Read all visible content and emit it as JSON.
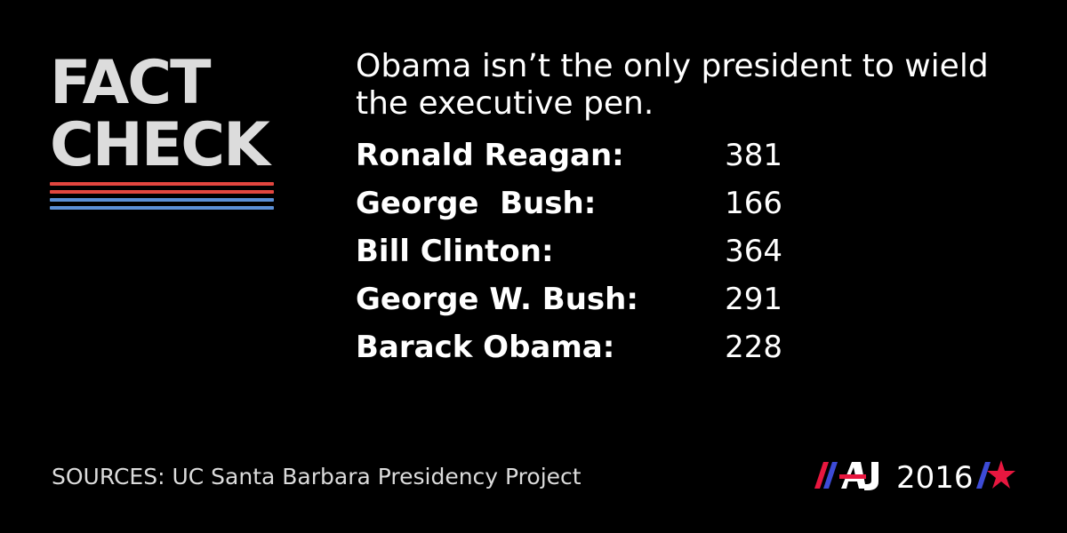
{
  "logo": {
    "line1": "FACT",
    "line2": "CHECK",
    "stripe_colors": [
      "#e2463f",
      "#e2463f",
      "#5b8fd6",
      "#5b8fd6"
    ]
  },
  "headline": "Obama isn’t the only president to wield the executive pen.",
  "executive_orders": [
    {
      "name": "Ronald Reagan:",
      "count": "381"
    },
    {
      "name": "George  Bush:",
      "count": "166"
    },
    {
      "name": "Bill Clinton:",
      "count": "364"
    },
    {
      "name": "George W. Bush:",
      "count": "291"
    },
    {
      "name": "Barack Obama:",
      "count": "228"
    }
  ],
  "sources": "SOURCES: UC Santa Barbara Presidency Project",
  "brand": {
    "logo_icon": "aj-logo-icon",
    "year": "2016",
    "star_icon": "star-icon",
    "colors": {
      "red": "#e8173f",
      "blue": "#3d4bd6"
    }
  }
}
